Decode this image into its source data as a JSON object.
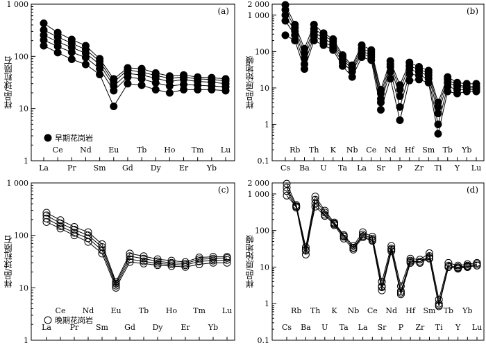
{
  "chart_data": [
    {
      "panel": "(a)",
      "type": "line",
      "scale": "log",
      "ylabel": "样品/球粒陨石",
      "ylim": [
        1,
        1000
      ],
      "yticks": [
        "1",
        "10",
        "100",
        "1 000"
      ],
      "categories": [
        "La",
        "Ce",
        "Pr",
        "Nd",
        "Sm",
        "Eu",
        "Gd",
        "Tb",
        "Dy",
        "Ho",
        "Er",
        "Tm",
        "Yb",
        "Lu"
      ],
      "legend": "早期花岗岩",
      "marker": "filled-circle",
      "series": [
        {
          "values": [
            430,
            285,
            210,
            160,
            90,
            37,
            60,
            58,
            48,
            42,
            44,
            40,
            39,
            37
          ]
        },
        {
          "values": [
            320,
            235,
            178,
            135,
            80,
            32,
            55,
            50,
            43,
            38,
            40,
            37,
            36,
            34
          ]
        },
        {
          "values": [
            255,
            190,
            148,
            115,
            70,
            27,
            47,
            44,
            38,
            33,
            36,
            33,
            32,
            30
          ]
        },
        {
          "values": [
            205,
            155,
            120,
            95,
            58,
            22,
            40,
            37,
            31,
            27,
            29,
            28,
            27,
            26
          ]
        },
        {
          "values": [
            160,
            118,
            88,
            70,
            45,
            11,
            30,
            28,
            23,
            20,
            23,
            23,
            23,
            22
          ]
        }
      ]
    },
    {
      "panel": "(b)",
      "type": "line",
      "scale": "log",
      "ylabel": "样品/原始地幔",
      "ylim": [
        0.1,
        2000
      ],
      "yticks": [
        "0.1",
        "1",
        "10",
        "100",
        "1 000",
        "2 000"
      ],
      "categories": [
        "Cs",
        "Rb",
        "Ba",
        "Th",
        "U",
        "K",
        "Ta",
        "Nb",
        "La",
        "Ce",
        "Sr",
        "Nd",
        "P",
        "Hf",
        "Zr",
        "Sm",
        "Ti",
        "Tb",
        "Y",
        "Yb",
        "Lu"
      ],
      "series": [
        {
          "values": [
            1900,
            550,
            120,
            550,
            320,
            220,
            80,
            42,
            150,
            110,
            9,
            55,
            12,
            50,
            38,
            30,
            4,
            20,
            14,
            13,
            13
          ]
        },
        {
          "values": [
            1400,
            450,
            90,
            420,
            280,
            190,
            70,
            38,
            120,
            95,
            7,
            45,
            9,
            40,
            32,
            26,
            3,
            17,
            12,
            11,
            11
          ]
        },
        {
          "values": [
            1000,
            360,
            65,
            340,
            230,
            160,
            60,
            33,
            100,
            82,
            5,
            38,
            6,
            32,
            27,
            22,
            2,
            14,
            11,
            10,
            10
          ]
        },
        {
          "values": [
            700,
            280,
            45,
            270,
            190,
            130,
            50,
            28,
            85,
            70,
            4,
            28,
            3,
            24,
            22,
            18,
            1,
            11,
            9,
            9,
            9
          ]
        },
        {
          "values": [
            280,
            200,
            33,
            200,
            150,
            110,
            40,
            20,
            70,
            58,
            2.5,
            18,
            1.3,
            16,
            17,
            14,
            0.55,
            8,
            7,
            8,
            8
          ]
        }
      ]
    },
    {
      "panel": "(c)",
      "type": "line",
      "scale": "log",
      "ylabel": "样品/球粒陨石",
      "ylim": [
        1,
        1000
      ],
      "yticks": [
        "1",
        "10",
        "100",
        "1 000"
      ],
      "categories": [
        "La",
        "Ce",
        "Pr",
        "Nd",
        "Sm",
        "Eu",
        "Gd",
        "Tb",
        "Dy",
        "Ho",
        "Er",
        "Tm",
        "Yb",
        "Lu"
      ],
      "legend": "晚期花岗岩",
      "marker": "open-circle",
      "series": [
        {
          "values": [
            270,
            195,
            145,
            115,
            68,
            13,
            45,
            40,
            35,
            33,
            31,
            38,
            39,
            39
          ]
        },
        {
          "values": [
            240,
            170,
            128,
            100,
            60,
            12,
            40,
            36,
            32,
            30,
            29,
            35,
            36,
            37
          ]
        },
        {
          "values": [
            210,
            150,
            112,
            88,
            52,
            11,
            35,
            32,
            29,
            28,
            27,
            32,
            33,
            34
          ]
        },
        {
          "values": [
            180,
            135,
            100,
            75,
            45,
            10,
            31,
            29,
            27,
            26,
            25,
            28,
            30,
            30
          ]
        }
      ]
    },
    {
      "panel": "(d)",
      "type": "line",
      "scale": "log",
      "ylabel": "样品/原始地幔",
      "ylim": [
        0.1,
        2000
      ],
      "yticks": [
        "0.1",
        "1",
        "10",
        "100",
        "1 000",
        "2 000"
      ],
      "categories": [
        "Cs",
        "Rb",
        "Ba",
        "Th",
        "U",
        "K",
        "Ta",
        "Nb",
        "La",
        "Ce",
        "Sr",
        "Nd",
        "P",
        "Hf",
        "Zr",
        "Sm",
        "Ti",
        "Tb",
        "Y",
        "Yb",
        "Lu"
      ],
      "series": [
        {
          "values": [
            1900,
            500,
            35,
            850,
            350,
            165,
            75,
            38,
            90,
            68,
            4,
            38,
            3,
            17,
            16,
            24,
            1.3,
            13,
            11,
            12,
            13
          ]
        },
        {
          "values": [
            1500,
            460,
            28,
            700,
            310,
            150,
            68,
            34,
            78,
            60,
            3,
            32,
            2.2,
            15,
            14,
            20,
            1.0,
            11,
            10,
            11,
            12
          ]
        },
        {
          "values": [
            1200,
            420,
            22,
            550,
            270,
            140,
            60,
            30,
            65,
            52,
            2.3,
            27,
            1.8,
            13,
            13,
            17,
            0.85,
            10,
            9,
            10,
            11
          ]
        },
        {
          "values": [
            900,
            450,
            30,
            450,
            250,
            155,
            70,
            33,
            70,
            55,
            2.8,
            30,
            2,
            14,
            14,
            18,
            0.9,
            10,
            9.5,
            10.5,
            11
          ]
        }
      ]
    }
  ]
}
